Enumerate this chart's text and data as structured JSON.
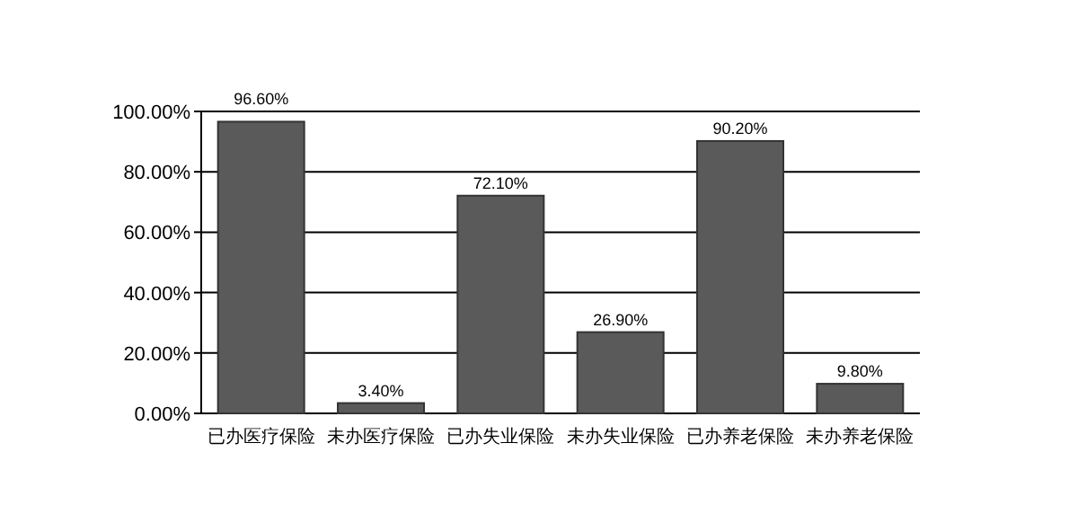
{
  "chart_data": {
    "type": "bar",
    "categories": [
      "已办医疗保险",
      "未办医疗保险",
      "已办失业保险",
      "未办失业保险",
      "已办养老保险",
      "未办养老保险"
    ],
    "values": [
      96.6,
      3.4,
      72.1,
      26.9,
      90.2,
      9.8
    ],
    "value_labels": [
      "96.60%",
      "3.40%",
      "72.10%",
      "26.90%",
      "90.20%",
      "9.80%"
    ],
    "color": "#5a5a5a",
    "ylim": [
      0,
      100
    ],
    "yticks": [
      {
        "value": 0,
        "label": "0.00%"
      },
      {
        "value": 20,
        "label": "20.00%"
      },
      {
        "value": 40,
        "label": "40.00%"
      },
      {
        "value": 60,
        "label": "60.00%"
      },
      {
        "value": 80,
        "label": "80.00%"
      },
      {
        "value": 100,
        "label": "100.00%"
      }
    ],
    "grid": "y"
  }
}
